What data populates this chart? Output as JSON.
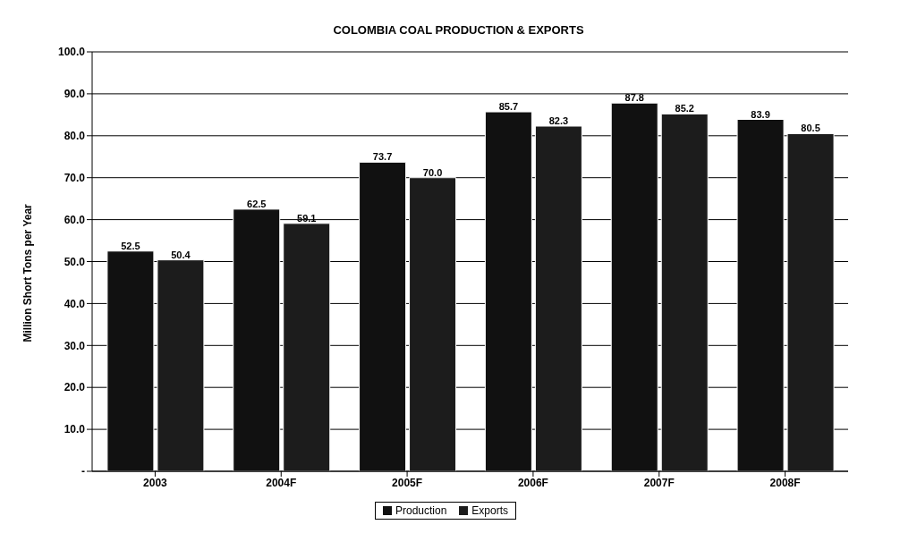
{
  "chart_data": {
    "type": "bar",
    "title": "COLOMBIA COAL PRODUCTION & EXPORTS",
    "ylabel": "Million Short Tons per Year",
    "categories": [
      "2003",
      "2004F",
      "2005F",
      "2006F",
      "2007F",
      "2008F"
    ],
    "series": [
      {
        "name": "Production",
        "color": "#111111",
        "values": [
          52.5,
          62.5,
          73.7,
          85.7,
          87.8,
          83.9
        ],
        "value_labels": [
          "52.5",
          "62.5",
          "73.7",
          "85.7",
          "87.8",
          "83.9"
        ]
      },
      {
        "name": "Exports",
        "color": "#1c1c1c",
        "values": [
          50.4,
          59.1,
          70.0,
          82.3,
          85.2,
          80.5
        ],
        "value_labels": [
          "50.4",
          "59.1",
          "70.0",
          "82.3",
          "85.2",
          "80.5"
        ]
      }
    ],
    "ylim": [
      0,
      100
    ],
    "yticks": [
      {
        "value": 0,
        "label": "-"
      },
      {
        "value": 10,
        "label": "10.0"
      },
      {
        "value": 20,
        "label": "20.0"
      },
      {
        "value": 30,
        "label": "30.0"
      },
      {
        "value": 40,
        "label": "40.0"
      },
      {
        "value": 50,
        "label": "50.0"
      },
      {
        "value": 60,
        "label": "60.0"
      },
      {
        "value": 70,
        "label": "70.0"
      },
      {
        "value": 80,
        "label": "80.0"
      },
      {
        "value": 90,
        "label": "90.0"
      },
      {
        "value": 100,
        "label": "100.0"
      }
    ],
    "grid": "y",
    "legend": "bottom"
  }
}
